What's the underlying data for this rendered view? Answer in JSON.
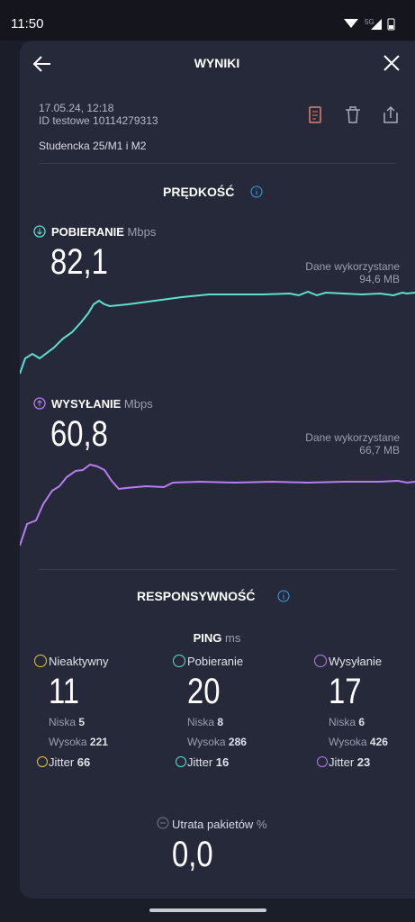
{
  "status_bar": {
    "time": "11:50",
    "network": "5G"
  },
  "header": {
    "title": "WYNIKI"
  },
  "test": {
    "datetime": "17.05.24, 12:18",
    "id": "ID testowe 10114279313",
    "location": "Studencka 25/M1 i M2"
  },
  "speed": {
    "title": "PRĘDKOŚĆ",
    "download": {
      "label": "POBIERANIE",
      "unit": "Mbps",
      "value": "82,1",
      "data_used_label": "Dane wykorzystane",
      "data_used": "94,6 MB"
    },
    "upload": {
      "label": "WYSYŁANIE",
      "unit": "Mbps",
      "value": "60,8",
      "data_used_label": "Dane wykorzystane",
      "data_used": "66,7 MB"
    }
  },
  "responsiveness": {
    "title": "RESPONSYWNOŚĆ",
    "ping_label": "PING",
    "ping_unit": "ms",
    "columns": [
      {
        "label": "Nieaktywny",
        "value": 11,
        "low_label": "Niska",
        "low": 5,
        "high_label": "Wysoka",
        "high": 221,
        "jitter_label": "Jitter",
        "jitter": 66
      },
      {
        "label": "Pobieranie",
        "value": 20,
        "low_label": "Niska",
        "low": 8,
        "high_label": "Wysoka",
        "high": 286,
        "jitter_label": "Jitter",
        "jitter": 16
      },
      {
        "label": "Wysyłanie",
        "value": 17,
        "low_label": "Niska",
        "low": 6,
        "high_label": "Wysoka",
        "high": 426,
        "jitter_label": "Jitter",
        "jitter": 23
      }
    ]
  },
  "packet_loss": {
    "label": "Utrata pakietów",
    "unit": "%",
    "value": "0,0"
  }
}
